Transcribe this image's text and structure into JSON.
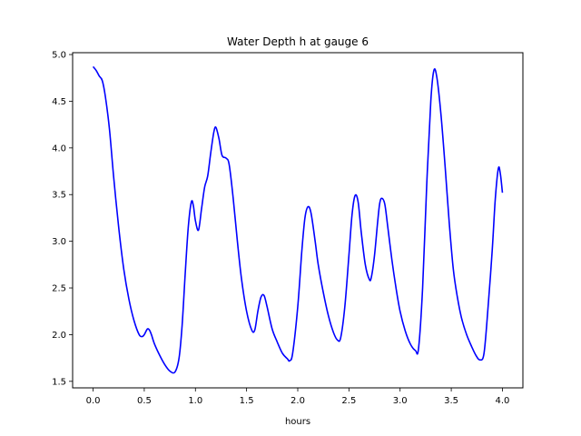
{
  "chart_data": {
    "type": "line",
    "title": "Water Depth h at gauge 6",
    "xlabel": "hours",
    "ylabel": "",
    "xlim": [
      -0.2,
      4.2
    ],
    "ylim": [
      1.43,
      5.02
    ],
    "xticks": [
      0.0,
      0.5,
      1.0,
      1.5,
      2.0,
      2.5,
      3.0,
      3.5,
      4.0
    ],
    "xtick_labels": [
      "0.0",
      "0.5",
      "1.0",
      "1.5",
      "2.0",
      "2.5",
      "3.0",
      "3.5",
      "4.0"
    ],
    "yticks": [
      1.5,
      2.0,
      2.5,
      3.0,
      3.5,
      4.0,
      4.5,
      5.0
    ],
    "ytick_labels": [
      "1.5",
      "2.0",
      "2.5",
      "3.0",
      "3.5",
      "4.0",
      "4.5",
      "5.0"
    ],
    "grid": false,
    "series": [
      {
        "color": "#0000ff",
        "x": [
          0.0,
          0.03,
          0.06,
          0.09,
          0.12,
          0.16,
          0.2,
          0.25,
          0.3,
          0.35,
          0.4,
          0.45,
          0.48,
          0.5,
          0.53,
          0.55,
          0.57,
          0.6,
          0.65,
          0.7,
          0.75,
          0.8,
          0.84,
          0.87,
          0.9,
          0.93,
          0.96,
          0.98,
          1.0,
          1.03,
          1.06,
          1.09,
          1.12,
          1.15,
          1.18,
          1.2,
          1.23,
          1.26,
          1.3,
          1.33,
          1.37,
          1.41,
          1.45,
          1.5,
          1.55,
          1.58,
          1.61,
          1.64,
          1.67,
          1.7,
          1.75,
          1.8,
          1.85,
          1.9,
          1.92,
          1.95,
          2.0,
          2.04,
          2.07,
          2.1,
          2.13,
          2.17,
          2.2,
          2.25,
          2.3,
          2.35,
          2.39,
          2.42,
          2.46,
          2.5,
          2.53,
          2.56,
          2.59,
          2.62,
          2.66,
          2.7,
          2.72,
          2.75,
          2.78,
          2.8,
          2.82,
          2.85,
          2.88,
          2.92,
          2.96,
          3.0,
          3.05,
          3.1,
          3.15,
          3.18,
          3.22,
          3.26,
          3.3,
          3.33,
          3.36,
          3.4,
          3.44,
          3.48,
          3.52,
          3.56,
          3.6,
          3.65,
          3.7,
          3.74,
          3.78,
          3.82,
          3.86,
          3.9,
          3.93,
          3.96,
          3.98,
          4.0
        ],
        "y": [
          4.87,
          4.83,
          4.77,
          4.72,
          4.55,
          4.2,
          3.7,
          3.15,
          2.7,
          2.38,
          2.15,
          2.0,
          1.98,
          2.0,
          2.06,
          2.05,
          2.0,
          1.9,
          1.78,
          1.68,
          1.61,
          1.6,
          1.75,
          2.1,
          2.65,
          3.15,
          3.42,
          3.38,
          3.22,
          3.12,
          3.35,
          3.58,
          3.7,
          3.95,
          4.17,
          4.22,
          4.1,
          3.92,
          3.89,
          3.82,
          3.45,
          3.0,
          2.6,
          2.25,
          2.05,
          2.05,
          2.25,
          2.4,
          2.42,
          2.3,
          2.06,
          1.92,
          1.8,
          1.74,
          1.72,
          1.8,
          2.3,
          2.9,
          3.25,
          3.37,
          3.3,
          3.0,
          2.75,
          2.45,
          2.2,
          2.02,
          1.94,
          1.97,
          2.3,
          2.85,
          3.28,
          3.49,
          3.42,
          3.1,
          2.75,
          2.59,
          2.62,
          2.85,
          3.2,
          3.4,
          3.46,
          3.4,
          3.15,
          2.8,
          2.5,
          2.25,
          2.04,
          1.9,
          1.83,
          1.85,
          2.5,
          3.6,
          4.5,
          4.83,
          4.75,
          4.35,
          3.8,
          3.2,
          2.7,
          2.4,
          2.18,
          2.0,
          1.87,
          1.78,
          1.73,
          1.8,
          2.3,
          2.9,
          3.45,
          3.78,
          3.72,
          3.52
        ]
      }
    ]
  }
}
